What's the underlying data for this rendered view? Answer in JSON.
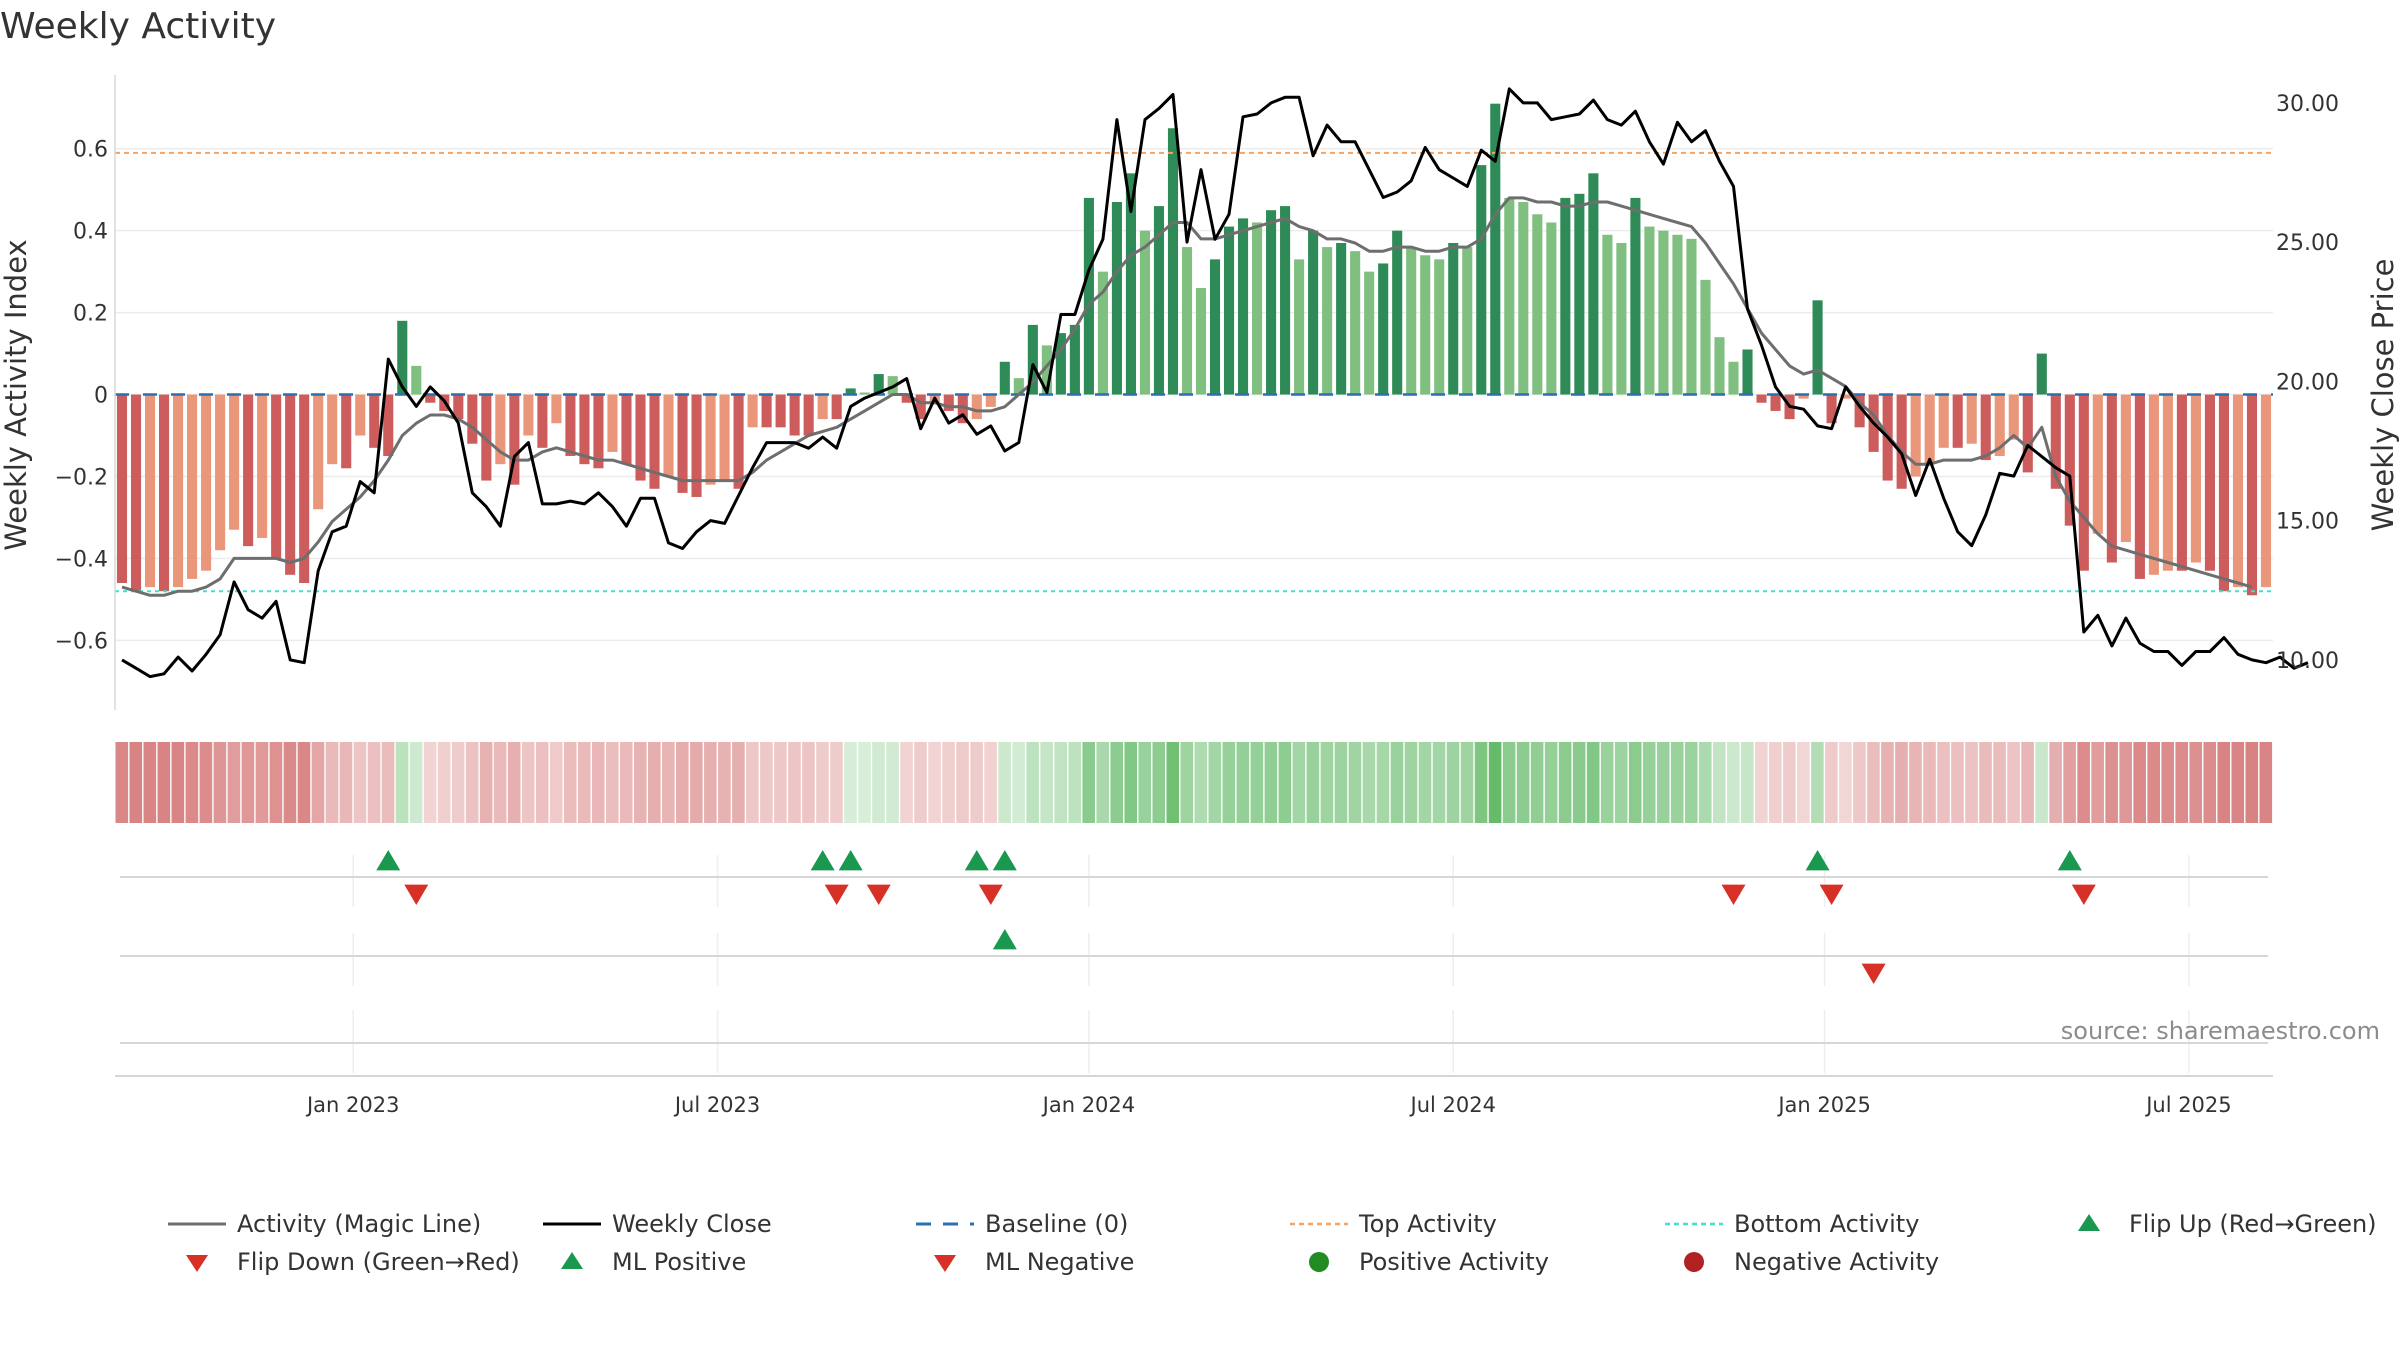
{
  "chart_data": {
    "type": "bar",
    "title": "Weekly Activity",
    "ylabel": "Weekly Activity Index",
    "y2label": "Weekly Close Price",
    "ylim": [
      -0.77,
      0.78
    ],
    "y2lim": [
      8.2,
      31.0
    ],
    "yticks": [
      -0.6,
      -0.4,
      -0.2,
      0,
      0.2,
      0.4,
      0.6
    ],
    "ytick_labels": [
      "−0.6",
      "−0.4",
      "−0.2",
      "0",
      "0.2",
      "0.4",
      "0.6"
    ],
    "y2ticks": [
      10,
      15,
      20,
      25,
      30
    ],
    "y2tick_labels": [
      "10.00",
      "15.00",
      "20.00",
      "25.00",
      "30.00"
    ],
    "x_dates": [
      {
        "label": "Jan 2023",
        "week": 17
      },
      {
        "label": "Jul 2023",
        "week": 43
      },
      {
        "label": "Jan 2024",
        "week": 69.5
      },
      {
        "label": "Jul 2024",
        "week": 95.5
      },
      {
        "label": "Jan 2025",
        "week": 122
      },
      {
        "label": "Jul 2025",
        "week": 148
      }
    ],
    "top_activity": 0.59,
    "bottom_activity": -0.48,
    "baseline": 0,
    "activity": [
      -0.46,
      -0.48,
      -0.47,
      -0.48,
      -0.47,
      -0.45,
      -0.43,
      -0.38,
      -0.33,
      -0.37,
      -0.35,
      -0.4,
      -0.44,
      -0.46,
      -0.28,
      -0.17,
      -0.18,
      -0.1,
      -0.13,
      -0.15,
      0.18,
      0.07,
      -0.02,
      -0.04,
      -0.06,
      -0.12,
      -0.21,
      -0.17,
      -0.22,
      -0.1,
      -0.13,
      -0.07,
      -0.15,
      -0.17,
      -0.18,
      -0.14,
      -0.17,
      -0.21,
      -0.23,
      -0.2,
      -0.24,
      -0.25,
      -0.22,
      -0.21,
      -0.23,
      -0.08,
      -0.08,
      -0.08,
      -0.1,
      -0.1,
      -0.06,
      -0.06,
      0.015,
      0.005,
      0.05,
      0.045,
      -0.02,
      -0.06,
      -0.02,
      -0.04,
      -0.07,
      -0.06,
      -0.03,
      0.08,
      0.04,
      0.17,
      0.12,
      0.15,
      0.17,
      0.48,
      0.3,
      0.47,
      0.54,
      0.4,
      0.46,
      0.65,
      0.36,
      0.26,
      0.33,
      0.41,
      0.43,
      0.42,
      0.45,
      0.46,
      0.33,
      0.4,
      0.36,
      0.37,
      0.35,
      0.3,
      0.32,
      0.4,
      0.36,
      0.34,
      0.33,
      0.37,
      0.36,
      0.56,
      0.71,
      0.48,
      0.47,
      0.44,
      0.42,
      0.48,
      0.49,
      0.54,
      0.39,
      0.37,
      0.48,
      0.41,
      0.4,
      0.39,
      0.38,
      0.28,
      0.14,
      0.08,
      0.11,
      -0.02,
      -0.04,
      -0.06,
      -0.01,
      0.23,
      -0.07,
      -0.01,
      -0.08,
      -0.14,
      -0.21,
      -0.23,
      -0.2,
      -0.17,
      -0.13,
      -0.13,
      -0.12,
      -0.16,
      -0.15,
      -0.11,
      -0.19,
      0.1,
      -0.23,
      -0.32,
      -0.43,
      -0.34,
      -0.41,
      -0.36,
      -0.45,
      -0.44,
      -0.43,
      -0.43,
      -0.41,
      -0.43,
      -0.48,
      -0.47,
      -0.49,
      -0.47
    ],
    "magic_line": [
      -0.47,
      -0.48,
      -0.49,
      -0.49,
      -0.48,
      -0.48,
      -0.47,
      -0.45,
      -0.4,
      -0.4,
      -0.4,
      -0.4,
      -0.41,
      -0.4,
      -0.36,
      -0.31,
      -0.28,
      -0.25,
      -0.21,
      -0.16,
      -0.1,
      -0.07,
      -0.05,
      -0.05,
      -0.06,
      -0.08,
      -0.11,
      -0.14,
      -0.16,
      -0.16,
      -0.14,
      -0.13,
      -0.14,
      -0.15,
      -0.16,
      -0.16,
      -0.17,
      -0.18,
      -0.19,
      -0.2,
      -0.21,
      -0.21,
      -0.21,
      -0.21,
      -0.21,
      -0.19,
      -0.16,
      -0.14,
      -0.12,
      -0.1,
      -0.09,
      -0.08,
      -0.06,
      -0.04,
      -0.02,
      0.0,
      0.0,
      -0.02,
      -0.02,
      -0.03,
      -0.03,
      -0.04,
      -0.04,
      -0.03,
      0.0,
      0.03,
      0.07,
      0.11,
      0.16,
      0.22,
      0.25,
      0.3,
      0.34,
      0.36,
      0.39,
      0.42,
      0.42,
      0.38,
      0.38,
      0.39,
      0.4,
      0.41,
      0.42,
      0.43,
      0.41,
      0.4,
      0.38,
      0.38,
      0.37,
      0.35,
      0.35,
      0.36,
      0.36,
      0.35,
      0.35,
      0.36,
      0.36,
      0.38,
      0.44,
      0.48,
      0.48,
      0.47,
      0.47,
      0.46,
      0.46,
      0.47,
      0.47,
      0.46,
      0.45,
      0.44,
      0.43,
      0.42,
      0.41,
      0.37,
      0.32,
      0.27,
      0.21,
      0.15,
      0.11,
      0.07,
      0.05,
      0.06,
      0.04,
      0.02,
      -0.02,
      -0.05,
      -0.1,
      -0.14,
      -0.17,
      -0.17,
      -0.16,
      -0.16,
      -0.16,
      -0.15,
      -0.13,
      -0.1,
      -0.13,
      -0.08,
      -0.2,
      -0.26,
      -0.3,
      -0.34,
      -0.37,
      -0.38,
      -0.39,
      -0.4,
      -0.41,
      -0.42,
      -0.43,
      -0.44,
      -0.45,
      -0.46,
      -0.47
    ],
    "weekly_close": [
      10.0,
      9.7,
      9.4,
      9.5,
      10.1,
      9.6,
      10.2,
      10.9,
      12.8,
      11.8,
      11.5,
      12.1,
      10.0,
      9.9,
      13.2,
      14.6,
      14.8,
      16.4,
      16.0,
      20.8,
      19.8,
      19.1,
      19.8,
      19.3,
      18.5,
      16.0,
      15.5,
      14.8,
      17.3,
      17.8,
      15.6,
      15.6,
      15.7,
      15.6,
      16.0,
      15.5,
      14.8,
      15.8,
      15.8,
      14.2,
      14.0,
      14.6,
      15.0,
      14.9,
      15.9,
      16.9,
      17.8,
      17.8,
      17.8,
      17.6,
      18.0,
      17.6,
      19.1,
      19.4,
      19.6,
      19.8,
      20.1,
      18.3,
      19.4,
      18.5,
      18.8,
      18.1,
      18.4,
      17.5,
      17.8,
      20.6,
      19.6,
      22.4,
      22.4,
      24.0,
      25.1,
      29.4,
      26.1,
      29.4,
      29.8,
      30.3,
      25.0,
      27.6,
      25.1,
      26.0,
      29.5,
      29.6,
      30.0,
      30.2,
      30.2,
      28.1,
      29.2,
      28.6,
      28.6,
      27.6,
      26.6,
      26.8,
      27.2,
      28.4,
      27.6,
      27.3,
      27.0,
      28.3,
      27.9,
      30.5,
      30.0,
      30.0,
      29.4,
      29.5,
      29.6,
      30.1,
      29.4,
      29.2,
      29.7,
      28.6,
      27.8,
      29.3,
      28.6,
      29.0,
      27.9,
      27.0,
      22.6,
      21.3,
      19.8,
      19.1,
      19.0,
      18.4,
      18.3,
      19.8,
      19.1,
      18.5,
      18.0,
      17.4,
      15.9,
      17.2,
      15.8,
      14.6,
      14.1,
      15.2,
      16.7,
      16.6,
      17.7,
      17.3,
      16.9,
      16.6,
      11.0,
      11.6,
      10.5,
      11.5,
      10.6,
      10.3,
      10.3,
      9.8,
      10.3,
      10.3,
      10.8,
      10.2,
      10.0,
      9.9,
      10.1,
      9.7,
      9.9
    ],
    "flip_up_weeks": [
      19,
      50,
      52,
      61,
      63,
      121,
      139
    ],
    "flip_down_weeks": [
      21,
      51,
      54,
      62,
      115,
      122,
      140
    ],
    "ml_positive_weeks": [
      63
    ],
    "ml_negative_weeks": [
      125
    ],
    "legend": [
      "Activity (Magic Line)",
      "Weekly Close",
      "Baseline (0)",
      "Top Activity",
      "Bottom Activity",
      "Flip Up (Red→Green)",
      "Flip Down (Green→Red)",
      "ML Positive",
      "ML Negative",
      "Positive Activity",
      "Negative Activity"
    ],
    "source": "source: sharemaestro.com"
  },
  "colors": {
    "pos_dark": "#2e8b57",
    "pos_light": "#7fbf7f",
    "neg_dark": "#cd5c5c",
    "neg_light": "#e9967a",
    "magic_line": "#6e6e6e",
    "close_line": "#000000",
    "baseline": "#2a6fb0",
    "top": "#f4a460",
    "bottom": "#40e0d0",
    "flip_up": "#1a9850",
    "flip_down": "#d73027",
    "pos_marker": "#228b22",
    "neg_marker": "#b22222"
  }
}
